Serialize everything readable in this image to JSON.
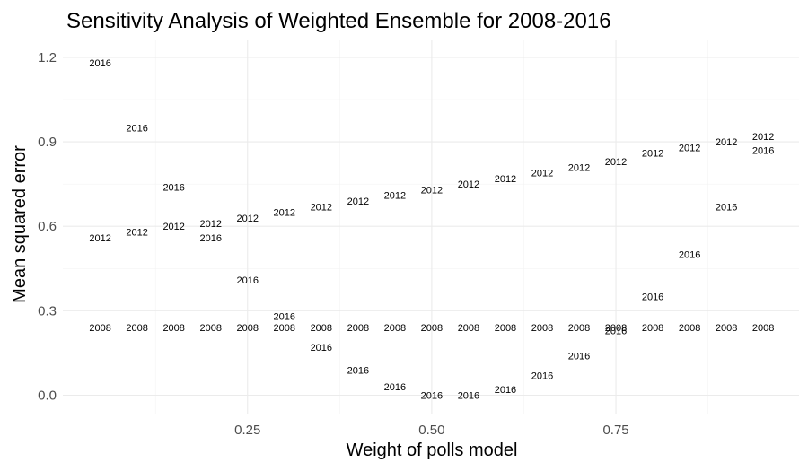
{
  "chart_data": {
    "type": "scatter",
    "title": "Sensitivity Analysis of Weighted Ensemble for 2008-2016",
    "xlabel": "Weight of polls model",
    "ylabel": "Mean squared error",
    "xlim": [
      0,
      1
    ],
    "ylim": [
      -0.06,
      1.24
    ],
    "x_ticks": [
      0.25,
      0.5,
      0.75
    ],
    "x_tick_labels": [
      "0.25",
      "0.50",
      "0.75"
    ],
    "y_ticks": [
      0.0,
      0.3,
      0.6,
      0.9,
      1.2
    ],
    "y_tick_labels": [
      "0.0",
      "0.3",
      "0.6",
      "0.9",
      "1.2"
    ],
    "grid": true,
    "marker": "text label",
    "x": [
      0.05,
      0.1,
      0.15,
      0.2,
      0.25,
      0.3,
      0.35,
      0.4,
      0.45,
      0.5,
      0.55,
      0.6,
      0.65,
      0.7,
      0.75,
      0.8,
      0.85,
      0.9,
      0.95
    ],
    "series": [
      {
        "name": "2008",
        "values": [
          0.24,
          0.24,
          0.24,
          0.24,
          0.24,
          0.24,
          0.24,
          0.24,
          0.24,
          0.24,
          0.24,
          0.24,
          0.24,
          0.24,
          0.24,
          0.24,
          0.24,
          0.24,
          0.24
        ]
      },
      {
        "name": "2012",
        "values": [
          0.56,
          0.58,
          0.6,
          0.61,
          0.63,
          0.65,
          0.67,
          0.69,
          0.71,
          0.73,
          0.75,
          0.77,
          0.79,
          0.81,
          0.83,
          0.86,
          0.88,
          0.9,
          0.92
        ]
      },
      {
        "name": "2016",
        "values": [
          1.18,
          0.95,
          0.74,
          0.56,
          0.41,
          0.28,
          0.17,
          0.09,
          0.03,
          0.0,
          0.0,
          0.02,
          0.07,
          0.14,
          0.23,
          0.35,
          0.5,
          0.67,
          0.87
        ]
      }
    ]
  }
}
